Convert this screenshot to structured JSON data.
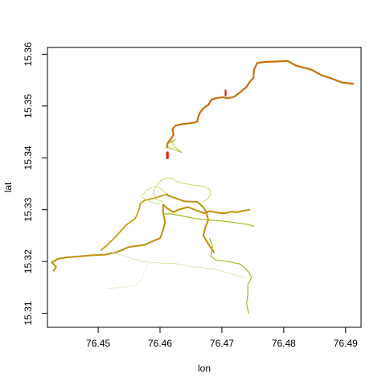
{
  "chart_data": {
    "type": "line",
    "title": "",
    "xlabel": "lon",
    "ylabel": "lat",
    "xlim": [
      76.4418,
      76.4925
    ],
    "ylim": [
      15.3073,
      15.3613
    ],
    "grid": false,
    "legend": "none",
    "x_ticks": [
      {
        "value": 76.45,
        "label": "76.45"
      },
      {
        "value": 76.46,
        "label": "76.46"
      },
      {
        "value": 76.47,
        "label": "76.47"
      },
      {
        "value": 76.48,
        "label": "76.48"
      },
      {
        "value": 76.49,
        "label": "76.49"
      }
    ],
    "y_ticks": [
      {
        "value": 15.31,
        "label": "15.31"
      },
      {
        "value": 15.32,
        "label": "15.32"
      },
      {
        "value": 15.33,
        "label": "15.33"
      },
      {
        "value": 15.34,
        "label": "15.34"
      },
      {
        "value": 15.35,
        "label": "15.35"
      },
      {
        "value": 15.36,
        "label": "15.36"
      }
    ],
    "series": [
      {
        "color": "#c86e0a",
        "width": 2.2,
        "points": [
          [
            76.4912,
            15.3543
          ],
          [
            76.4895,
            15.3545
          ],
          [
            76.4875,
            15.3554
          ],
          [
            76.486,
            15.356
          ],
          [
            76.4845,
            15.357
          ],
          [
            76.482,
            15.3578
          ],
          [
            76.4806,
            15.3587
          ],
          [
            76.4792,
            15.3586
          ],
          [
            76.477,
            15.3585
          ],
          [
            76.4757,
            15.3583
          ],
          [
            76.4752,
            15.357
          ],
          [
            76.4751,
            15.3555
          ],
          [
            76.4744,
            15.3545
          ],
          [
            76.474,
            15.3537
          ],
          [
            76.473,
            15.3527
          ],
          [
            76.472,
            15.3518
          ],
          [
            76.471,
            15.3515
          ],
          [
            76.47,
            15.3517
          ],
          [
            76.469,
            15.3515
          ],
          [
            76.4683,
            15.3512
          ],
          [
            76.4678,
            15.3502
          ],
          [
            76.4675,
            15.35
          ],
          [
            76.467,
            15.3495
          ],
          [
            76.4665,
            15.3488
          ],
          [
            76.4662,
            15.348
          ],
          [
            76.466,
            15.347
          ],
          [
            76.4655,
            15.3468
          ],
          [
            76.4645,
            15.3466
          ],
          [
            76.4635,
            15.3465
          ],
          [
            76.4625,
            15.3462
          ],
          [
            76.462,
            15.3455
          ],
          [
            76.4622,
            15.3445
          ],
          [
            76.4618,
            15.3437
          ],
          [
            76.4612,
            15.3428
          ],
          [
            76.4612,
            15.342
          ]
        ]
      },
      {
        "color": "#e8200a",
        "width": 3.2,
        "points": [
          [
            76.4612,
            15.341
          ],
          [
            76.4612,
            15.34
          ]
        ]
      },
      {
        "color": "#e8200a",
        "width": 2.2,
        "points": [
          [
            76.4706,
            15.353
          ],
          [
            76.4706,
            15.352
          ]
        ]
      },
      {
        "color": "#c08f0a",
        "width": 2.0,
        "points": [
          [
            76.4745,
            15.33
          ],
          [
            76.4735,
            15.3298
          ],
          [
            76.4725,
            15.3295
          ],
          [
            76.4715,
            15.3296
          ],
          [
            76.4705,
            15.3293
          ],
          [
            76.4695,
            15.3294
          ],
          [
            76.468,
            15.3297
          ],
          [
            76.4672,
            15.3293
          ],
          [
            76.466,
            15.3298
          ],
          [
            76.4645,
            15.3305
          ],
          [
            76.463,
            15.33
          ],
          [
            76.4622,
            15.3295
          ],
          [
            76.4612,
            15.3302
          ],
          [
            76.4605,
            15.331
          ],
          [
            76.4605,
            15.3295
          ],
          [
            76.4608,
            15.3275
          ],
          [
            76.4605,
            15.326
          ],
          [
            76.46,
            15.3245
          ],
          [
            76.459,
            15.324
          ],
          [
            76.4575,
            15.3232
          ],
          [
            76.455,
            15.3228
          ],
          [
            76.453,
            15.3218
          ],
          [
            76.451,
            15.3213
          ],
          [
            76.449,
            15.3212
          ],
          [
            76.447,
            15.321
          ],
          [
            76.445,
            15.3208
          ],
          [
            76.4435,
            15.3205
          ],
          [
            76.4425,
            15.3198
          ],
          [
            76.4432,
            15.319
          ],
          [
            76.4428,
            15.3182
          ]
        ]
      },
      {
        "color": "#c08f0a",
        "width": 2.0,
        "points": [
          [
            76.4612,
            15.3328
          ],
          [
            76.4625,
            15.3322
          ],
          [
            76.464,
            15.3316
          ],
          [
            76.466,
            15.3315
          ],
          [
            76.467,
            15.3305
          ],
          [
            76.4675,
            15.3295
          ],
          [
            76.4678,
            15.328
          ],
          [
            76.4674,
            15.3268
          ],
          [
            76.467,
            15.325
          ],
          [
            76.4676,
            15.3238
          ],
          [
            76.4683,
            15.3225
          ],
          [
            76.4687,
            15.3218
          ]
        ]
      },
      {
        "color": "#c8a010",
        "width": 1.8,
        "points": [
          [
            76.4612,
            15.333
          ],
          [
            76.459,
            15.3322
          ],
          [
            76.4575,
            15.3318
          ],
          [
            76.4568,
            15.3312
          ],
          [
            76.4566,
            15.33
          ],
          [
            76.456,
            15.3283
          ],
          [
            76.4545,
            15.327
          ],
          [
            76.453,
            15.325
          ],
          [
            76.4515,
            15.3232
          ],
          [
            76.4505,
            15.3222
          ]
        ]
      },
      {
        "color": "#a8b818",
        "width": 1.2,
        "points": [
          [
            76.4605,
            15.3292
          ],
          [
            76.4618,
            15.3292
          ],
          [
            76.4635,
            15.3288
          ],
          [
            76.4655,
            15.3283
          ],
          [
            76.468,
            15.328
          ],
          [
            76.47,
            15.3278
          ],
          [
            76.472,
            15.3275
          ],
          [
            76.474,
            15.3272
          ],
          [
            76.4752,
            15.3268
          ]
        ]
      },
      {
        "color": "#a8b818",
        "width": 1.2,
        "points": [
          [
            76.468,
            15.3245
          ],
          [
            76.4685,
            15.323
          ],
          [
            76.4682,
            15.321
          ],
          [
            76.469,
            15.3203
          ],
          [
            76.471,
            15.32
          ],
          [
            76.473,
            15.3195
          ],
          [
            76.4743,
            15.318
          ],
          [
            76.4748,
            15.317
          ],
          [
            76.4742,
            15.3155
          ],
          [
            76.4742,
            15.3135
          ],
          [
            76.474,
            15.312
          ],
          [
            76.4743,
            15.31
          ]
        ]
      },
      {
        "color": "#a8c820",
        "width": 1.0,
        "points": [
          [
            76.4608,
            15.342
          ],
          [
            76.462,
            15.3418
          ],
          [
            76.4635,
            15.341
          ],
          [
            76.4625,
            15.342
          ],
          [
            76.4618,
            15.3432
          ],
          [
            76.4625,
            15.3435
          ],
          [
            76.461,
            15.3425
          ]
        ]
      },
      {
        "color": "#b8d850",
        "width": 0.9,
        "points": [
          [
            76.4605,
            15.3315
          ],
          [
            76.459,
            15.3322
          ],
          [
            76.459,
            15.3338
          ],
          [
            76.46,
            15.3355
          ],
          [
            76.461,
            15.3362
          ],
          [
            76.462,
            15.336
          ],
          [
            76.463,
            15.3353
          ],
          [
            76.465,
            15.3348
          ],
          [
            76.467,
            15.3345
          ],
          [
            76.468,
            15.334
          ],
          [
            76.4682,
            15.333
          ],
          [
            76.4678,
            15.3322
          ],
          [
            76.467,
            15.3315
          ]
        ]
      },
      {
        "color": "#c0e070",
        "width": 0.8,
        "points": [
          [
            76.46,
            15.331
          ],
          [
            76.4585,
            15.3315
          ],
          [
            76.457,
            15.3325
          ],
          [
            76.4578,
            15.3338
          ],
          [
            76.4592,
            15.3345
          ],
          [
            76.4602,
            15.334
          ],
          [
            76.461,
            15.333
          ]
        ]
      },
      {
        "color": "#d0e8a0",
        "width": 0.8,
        "points": [
          [
            76.452,
            15.3218
          ],
          [
            76.4545,
            15.321
          ],
          [
            76.457,
            15.32
          ],
          [
            76.46,
            15.3197
          ],
          [
            76.4625,
            15.3196
          ],
          [
            76.465,
            15.319
          ],
          [
            76.467,
            15.3188
          ],
          [
            76.469,
            15.3185
          ],
          [
            76.471,
            15.3178
          ],
          [
            76.4725,
            15.3172
          ],
          [
            76.4738,
            15.3168
          ]
        ]
      },
      {
        "color": "#e4f0c8",
        "width": 0.8,
        "points": [
          [
            76.4515,
            15.3148
          ],
          [
            76.454,
            15.315
          ],
          [
            76.456,
            15.3153
          ],
          [
            76.457,
            15.3165
          ],
          [
            76.4575,
            15.318
          ],
          [
            76.458,
            15.3195
          ]
        ]
      }
    ]
  }
}
